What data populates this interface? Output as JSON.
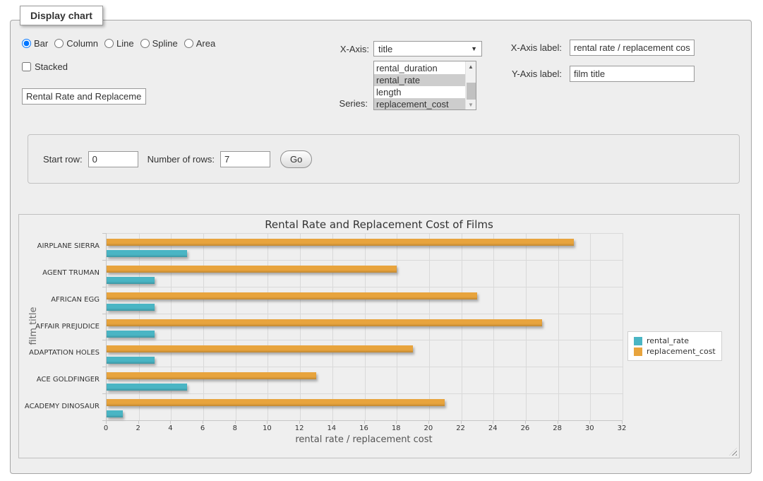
{
  "panel": {
    "legend": "Display chart"
  },
  "chart_type": {
    "options": [
      "Bar",
      "Column",
      "Line",
      "Spline",
      "Area"
    ],
    "selected": "Bar"
  },
  "stacked": {
    "label": "Stacked",
    "checked": false
  },
  "chart_title_input": {
    "value": "Rental Rate and Replacement Cost of Films"
  },
  "x_axis_select": {
    "label": "X-Axis:",
    "value": "title"
  },
  "series_select": {
    "label": "Series:",
    "options": [
      "rental_duration",
      "rental_rate",
      "length",
      "replacement_cost"
    ],
    "selected": [
      "rental_rate",
      "replacement_cost"
    ]
  },
  "x_axis_label_field": {
    "label": "X-Axis label:",
    "value": "rental rate / replacement cost"
  },
  "y_axis_label_field": {
    "label": "Y-Axis label:",
    "value": "film title"
  },
  "row_controls": {
    "start_row_label": "Start row:",
    "start_row_value": "0",
    "number_of_rows_label": "Number of rows:",
    "number_of_rows_value": "7",
    "go_label": "Go"
  },
  "icons": {
    "dropdown_arrow": "▼",
    "scroll_up_arrow": "▲",
    "scroll_down_arrow": "▼"
  },
  "colors": {
    "rental_rate": "#4AB5C4",
    "replacement_cost": "#E8A43D",
    "grid": "#d9d9d9",
    "axis": "#c6c6c6"
  },
  "chart_data": {
    "type": "bar",
    "title": "Rental Rate and Replacement Cost of Films",
    "categories": [
      "AIRPLANE SIERRA",
      "AGENT TRUMAN",
      "AFRICAN EGG",
      "AFFAIR PREJUDICE",
      "ADAPTATION HOLES",
      "ACE GOLDFINGER",
      "ACADEMY DINOSAUR"
    ],
    "series": [
      {
        "name": "rental_rate",
        "color": "#4AB5C4",
        "values": [
          4.99,
          2.99,
          2.99,
          2.99,
          2.99,
          4.99,
          0.99
        ]
      },
      {
        "name": "replacement_cost",
        "color": "#E8A43D",
        "values": [
          28.99,
          17.99,
          22.99,
          26.99,
          18.99,
          12.99,
          20.99
        ]
      }
    ],
    "xlabel": "rental rate / replacement cost",
    "ylabel": "film title",
    "xlim": [
      0,
      32
    ],
    "xticks": [
      0,
      2,
      4,
      6,
      8,
      10,
      12,
      14,
      16,
      18,
      20,
      22,
      24,
      26,
      28,
      30,
      32
    ],
    "grid": true,
    "legend_position": "right",
    "bar_group_display_order": [
      "replacement_cost",
      "rental_rate"
    ]
  }
}
